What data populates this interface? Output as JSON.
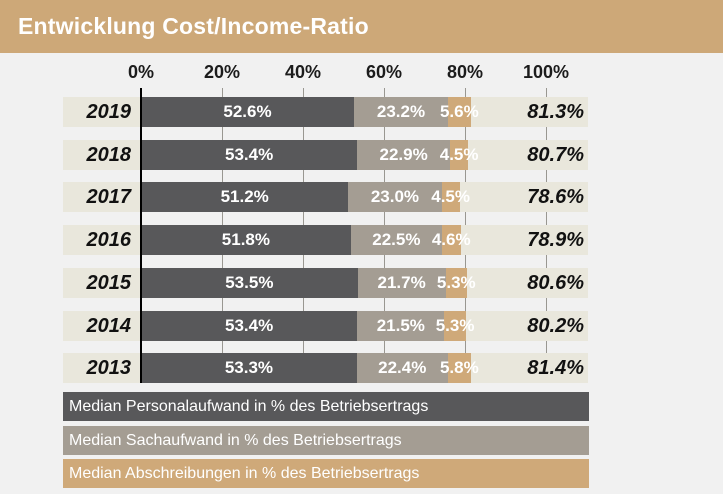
{
  "header": {
    "title": "Entwicklung Cost/Income-Ratio"
  },
  "colors": {
    "title_bar": "#cda878",
    "personalaufwand": "#58585a",
    "sachaufwand": "#a49d93",
    "abschreibungen": "#cfa979",
    "row_background": "#e9e7dc",
    "page_background": "#f1f1f1",
    "gridline": "#999791",
    "axis_zero_line": "#000000"
  },
  "chart_data": {
    "type": "bar",
    "stacked": true,
    "orientation": "horizontal",
    "title": "Entwicklung Cost/Income-Ratio",
    "categories": [
      "2019",
      "2018",
      "2017",
      "2016",
      "2015",
      "2014",
      "2013"
    ],
    "series": [
      {
        "key": "personalaufwand",
        "name": "Median Personalaufwand in % des Betriebsertrags",
        "color": "#58585a",
        "values": [
          52.6,
          53.4,
          51.2,
          51.8,
          53.5,
          53.4,
          53.3
        ]
      },
      {
        "key": "sachaufwand",
        "name": "Median Sachaufwand in % des Betriebsertrags",
        "color": "#a49d93",
        "values": [
          23.2,
          22.9,
          23.0,
          22.5,
          21.7,
          21.5,
          22.4
        ]
      },
      {
        "key": "abschreibungen",
        "name": "Median Abschreibungen in % des Betriebsertrags",
        "color": "#cfa979",
        "values": [
          5.6,
          4.5,
          4.5,
          4.6,
          5.3,
          5.3,
          5.8
        ]
      }
    ],
    "totals": [
      81.3,
      80.7,
      78.6,
      78.9,
      80.6,
      80.2,
      81.4
    ],
    "x_axis": {
      "range": [
        0,
        100
      ],
      "ticks": [
        0,
        20,
        40,
        60,
        80,
        100
      ],
      "tick_labels": [
        "0%",
        "20%",
        "40%",
        "60%",
        "80%",
        "100%"
      ]
    },
    "value_suffix": "%",
    "grid": true,
    "legend_position": "bottom"
  }
}
